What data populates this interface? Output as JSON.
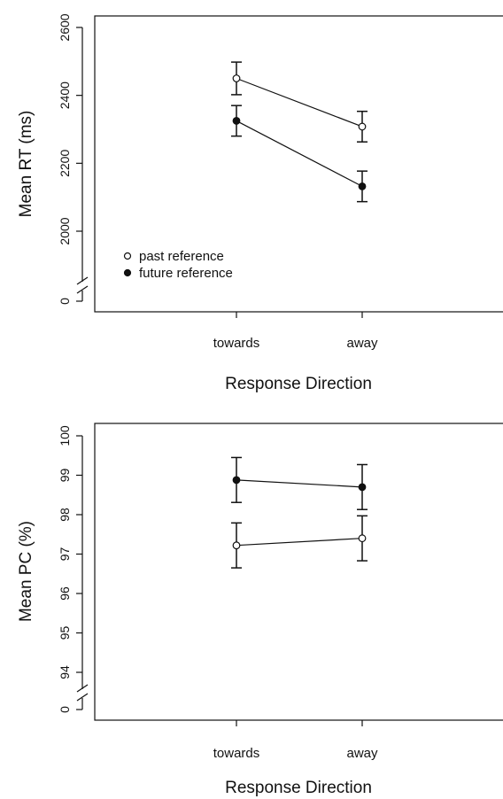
{
  "chart_data": [
    {
      "type": "line",
      "title": "",
      "xlabel": "Response Direction",
      "ylabel": "Mean RT (ms)",
      "categories": [
        "towards",
        "away"
      ],
      "yticks": [
        "0",
        "2000",
        "2200",
        "2400",
        "2600"
      ],
      "ylim": [
        2000,
        2600
      ],
      "axis_break": true,
      "legend": {
        "placement": "bottom-left",
        "entries": [
          "past reference",
          "future reference"
        ]
      },
      "series": [
        {
          "name": "past reference",
          "marker": "open-circle",
          "values": [
            2450,
            2308
          ],
          "error": [
            48,
            45
          ]
        },
        {
          "name": "future reference",
          "marker": "filled-circle",
          "values": [
            2325,
            2132
          ],
          "error": [
            45,
            45
          ]
        }
      ]
    },
    {
      "type": "line",
      "title": "",
      "xlabel": "Response Direction",
      "ylabel": "Mean PC (%)",
      "categories": [
        "towards",
        "away"
      ],
      "yticks": [
        "0",
        "94",
        "95",
        "96",
        "97",
        "98",
        "99",
        "100"
      ],
      "ylim": [
        94,
        100
      ],
      "axis_break": true,
      "series": [
        {
          "name": "past reference",
          "marker": "open-circle",
          "values": [
            97.22,
            97.4
          ],
          "error": [
            0.57,
            0.57
          ]
        },
        {
          "name": "future reference",
          "marker": "filled-circle",
          "values": [
            98.88,
            98.7
          ],
          "error": [
            0.57,
            0.57
          ]
        }
      ]
    }
  ]
}
